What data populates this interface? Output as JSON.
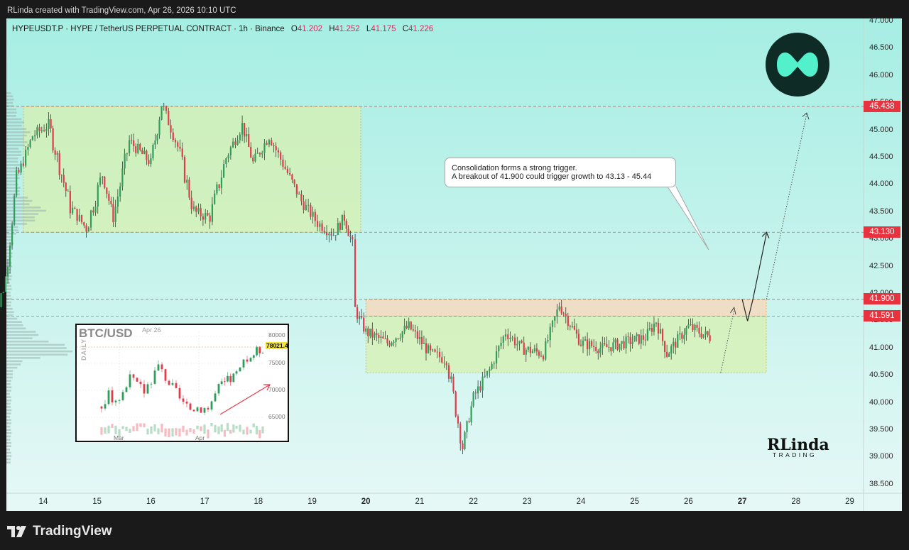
{
  "header": {
    "attribution": "RLinda created with TradingView.com, Apr 26, 2026 10:10 UTC"
  },
  "symbol_line": {
    "text": "HYPEUSDT.P · HYPE / TetherUS PERPETUAL CONTRACT · 1h · Binance",
    "o_key": "O",
    "o": "41.202",
    "h_key": "H",
    "h": "41.252",
    "l_key": "L",
    "l": "41.175",
    "c_key": "C",
    "c": "41.226"
  },
  "colors": {
    "bg_top": "#a6eee3",
    "bg_bottom": "#e6f8f6",
    "up": "#2f9e5b",
    "down": "#e23b4a",
    "level": "#e8323e",
    "zone_range": "#d7f0b0",
    "zone_resist": "#f5d9bd"
  },
  "annotation": {
    "line1": "Consolidation forms a strong trigger.",
    "line2": "A breakout of 41.900 could trigger growth to 43.13 - 45.44"
  },
  "price_labels": {
    "target2": "45.438",
    "target1": "43.130",
    "breakout": "41.900",
    "resistance": "41.591"
  },
  "inset": {
    "symbol": "BTC/USD",
    "date": "Apr 26",
    "timeframe": "DAILY",
    "last_price": "78021.4",
    "y_ticks": [
      "80000",
      "75000",
      "70000",
      "65000"
    ],
    "x_ticks": [
      "Mar",
      "Apr"
    ]
  },
  "branding": {
    "author_logo_main": "RLinda",
    "author_logo_sub": "TRADING",
    "footer_logo": "TradingView",
    "logo_icon": "hyperliquid-logo-icon"
  },
  "chart_data": {
    "type": "candlestick",
    "symbol": "HYPEUSDT.P",
    "timeframe": "1h",
    "ylim": [
      38.25,
      47.0
    ],
    "y_ticks": [
      "47.000",
      "46.500",
      "46.000",
      "45.500",
      "45.000",
      "44.500",
      "44.000",
      "43.500",
      "43.000",
      "42.500",
      "42.000",
      "41.500",
      "41.000",
      "40.500",
      "40.000",
      "39.500",
      "39.000",
      "38.500"
    ],
    "x_ticks": [
      "14",
      "15",
      "16",
      "17",
      "18",
      "19",
      "20",
      "21",
      "22",
      "23",
      "24",
      "25",
      "26",
      "27",
      "28",
      "29"
    ],
    "levels": [
      45.438,
      43.13,
      41.9,
      41.591
    ],
    "zones": [
      {
        "name": "upper range",
        "from": "13",
        "to": "19.9",
        "low": 43.13,
        "high": 45.438
      },
      {
        "name": "consolidation",
        "from": "20",
        "to": "27.5",
        "low": 40.55,
        "high": 41.591
      },
      {
        "name": "breakout area",
        "from": "20",
        "to": "27.5",
        "low": 41.591,
        "high": 41.9
      }
    ],
    "price_path": [
      [
        "13",
        41.1
      ],
      [
        "13.3",
        42.3
      ],
      [
        "13.5",
        44.1
      ],
      [
        "13.8",
        44.9
      ],
      [
        "14.1",
        45.1
      ],
      [
        "14.5",
        43.6
      ],
      [
        "14.8",
        43.2
      ],
      [
        "15.1",
        44.2
      ],
      [
        "15.3",
        43.4
      ],
      [
        "15.6",
        44.8
      ],
      [
        "16",
        44.4
      ],
      [
        "16.2",
        45.5
      ],
      [
        "16.5",
        44.7
      ],
      [
        "16.8",
        43.5
      ],
      [
        "17.1",
        43.4
      ],
      [
        "17.4",
        44.5
      ],
      [
        "17.7",
        45.1
      ],
      [
        "17.9",
        44.4
      ],
      [
        "18.2",
        44.9
      ],
      [
        "18.5",
        44.3
      ],
      [
        "18.8",
        43.7
      ],
      [
        "19.1",
        43.3
      ],
      [
        "19.4",
        43.1
      ],
      [
        "19.6",
        43.4
      ],
      [
        "19.75",
        42.9
      ],
      [
        "19.8",
        41.7
      ],
      [
        "20",
        41.3
      ],
      [
        "20.4",
        41.1
      ],
      [
        "20.8",
        41.4
      ],
      [
        "21.2",
        40.9
      ],
      [
        "21.5",
        40.8
      ],
      [
        "21.8",
        39.2
      ],
      [
        "22",
        40.1
      ],
      [
        "22.3",
        40.6
      ],
      [
        "22.6",
        41.3
      ],
      [
        "22.9",
        41.0
      ],
      [
        "23.3",
        40.9
      ],
      [
        "23.6",
        41.8
      ],
      [
        "24",
        41.1
      ],
      [
        "24.4",
        41.0
      ],
      [
        "24.8",
        41.1
      ],
      [
        "25.2",
        41.2
      ],
      [
        "25.4",
        41.5
      ],
      [
        "25.6",
        40.9
      ],
      [
        "26",
        41.4
      ],
      [
        "26.4",
        41.2
      ]
    ],
    "projection": [
      [
        "26.4",
        41.2
      ],
      [
        "26.9",
        41.6
      ],
      [
        "27.0",
        41.7
      ]
    ],
    "scenario": [
      [
        "27.0",
        41.9
      ],
      [
        "27.1",
        41.5
      ],
      [
        "27.2",
        41.9
      ],
      [
        "27.45",
        43.1
      ]
    ],
    "long_projection": [
      [
        "27.45",
        41.9
      ],
      [
        "28.2",
        45.3
      ]
    ],
    "last": {
      "open": 41.202,
      "high": 41.252,
      "low": 41.175,
      "close": 41.226
    }
  }
}
